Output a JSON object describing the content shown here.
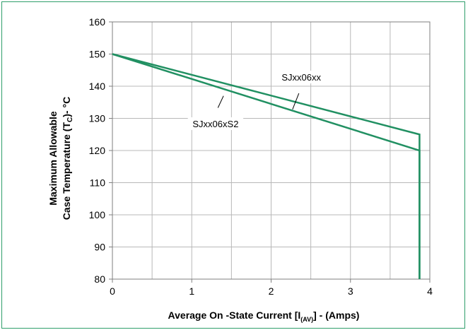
{
  "chart_data": {
    "type": "line",
    "title": "",
    "xlabel_parts": {
      "prefix": "Average On -State  Current [I",
      "subscript": "(AV)",
      "suffix": "] - (Amps)"
    },
    "ylabel_line1": "Maximum Allowable",
    "ylabel_line2_parts": {
      "prefix": "Case Temperature (T",
      "subscript": "C",
      "suffix": ")-  °C"
    },
    "xlim": [
      0,
      4
    ],
    "ylim": [
      80,
      160
    ],
    "xticks": [
      0,
      1,
      2,
      3,
      4
    ],
    "yticks": [
      80,
      90,
      100,
      110,
      120,
      130,
      140,
      150,
      160
    ],
    "x_minor_step": 0.5,
    "grid": true,
    "legend": "none",
    "line_color": "#219062",
    "series": [
      {
        "name": "SJxx06xx",
        "x": [
          0,
          3.87,
          3.87
        ],
        "y": [
          150,
          125,
          80
        ]
      },
      {
        "name": "SJxx06xS2",
        "x": [
          0,
          3.87,
          3.87
        ],
        "y": [
          150,
          120,
          80
        ]
      }
    ],
    "annotations": [
      {
        "text": "SJxx06xx",
        "series": 0,
        "label_at": [
          2.38,
          142.2
        ],
        "pointer_from": [
          2.35,
          137.8
        ],
        "pointer_to": [
          2.27,
          132.8
        ]
      },
      {
        "text": "SJxx06xS2",
        "series": 1,
        "label_at": [
          1.3,
          127.7
        ],
        "pointer_from": [
          1.33,
          133.3
        ],
        "pointer_to": [
          1.4,
          137.0
        ]
      }
    ]
  }
}
